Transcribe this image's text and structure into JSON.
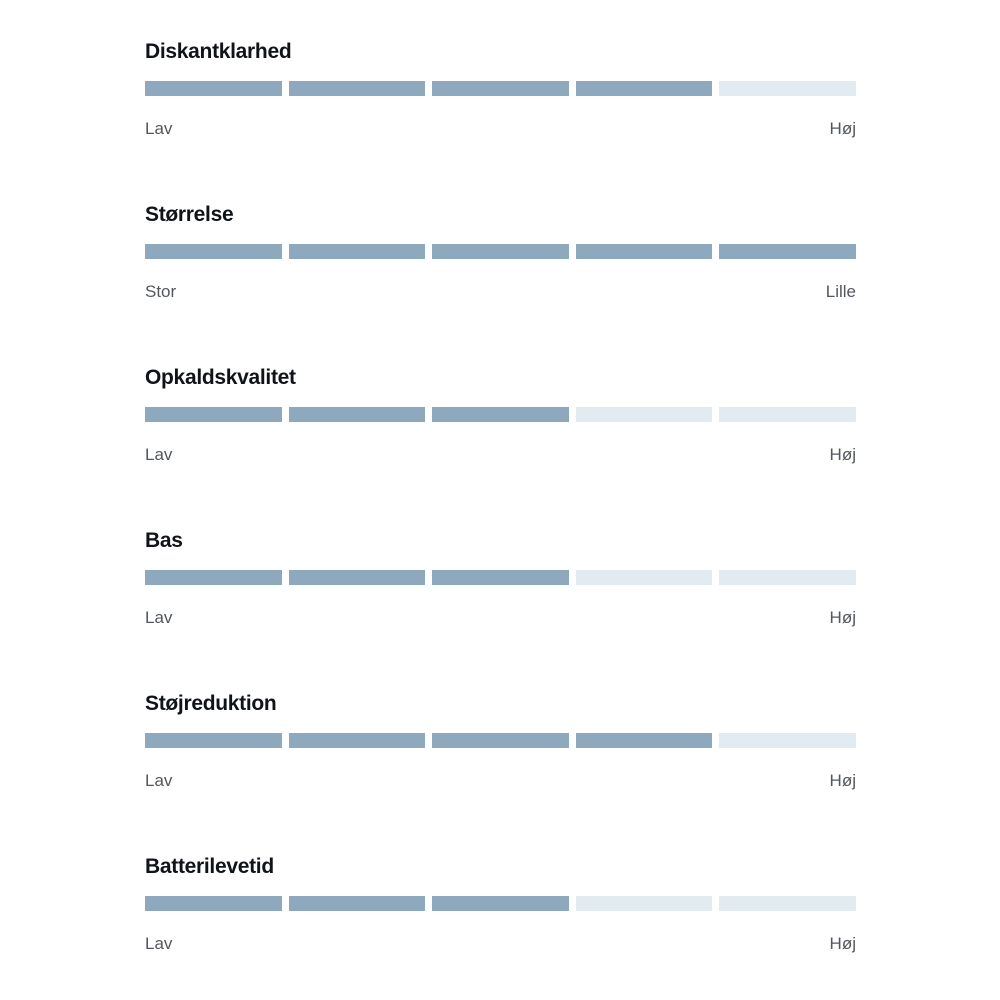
{
  "colors": {
    "filled_segment": "#8ea8be",
    "empty_segment": "#e3ebf2",
    "title_text": "#101418",
    "label_text": "#53575c",
    "background": "#ffffff"
  },
  "ratings": {
    "segments_total": 5,
    "items": [
      {
        "title": "Diskantklarhed",
        "value": 4,
        "left_label": "Lav",
        "right_label": "Høj"
      },
      {
        "title": "Størrelse",
        "value": 5,
        "left_label": "Stor",
        "right_label": "Lille"
      },
      {
        "title": "Opkaldskvalitet",
        "value": 3,
        "left_label": "Lav",
        "right_label": "Høj"
      },
      {
        "title": "Bas",
        "value": 3,
        "left_label": "Lav",
        "right_label": "Høj"
      },
      {
        "title": "Støjreduktion",
        "value": 4,
        "left_label": "Lav",
        "right_label": "Høj"
      },
      {
        "title": "Batterilevetid",
        "value": 3,
        "left_label": "Lav",
        "right_label": "Høj"
      }
    ]
  },
  "chart_data": {
    "type": "bar",
    "subtype": "segmented-rating-bars",
    "categories": [
      "Diskantklarhed",
      "Størrelse",
      "Opkaldskvalitet",
      "Bas",
      "Støjreduktion",
      "Batterilevetid"
    ],
    "values": [
      4,
      5,
      3,
      3,
      4,
      3
    ],
    "scale_max": 5,
    "left_endpoint_labels": [
      "Lav",
      "Stor",
      "Lav",
      "Lav",
      "Lav",
      "Lav"
    ],
    "right_endpoint_labels": [
      "Høj",
      "Lille",
      "Høj",
      "Høj",
      "Høj",
      "Høj"
    ],
    "title": "",
    "xlabel": "",
    "ylabel": "",
    "legend": "none",
    "grid": false
  }
}
